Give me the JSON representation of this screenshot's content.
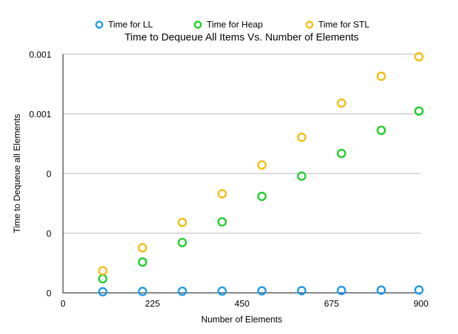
{
  "chart_data": {
    "type": "scatter",
    "title": "Time to Dequeue All Items Vs. Number of Elements",
    "xlabel": "Number of Elements",
    "ylabel": "Time to Dequeue all Elements",
    "xlim": [
      0,
      900
    ],
    "ylim": [
      0,
      0.0012
    ],
    "x_ticks": [
      "0",
      "225",
      "450",
      "675",
      "900"
    ],
    "y_ticks": [
      "0",
      "0",
      "0",
      "0.001",
      "0.001"
    ],
    "grid": "horizontal",
    "legend_position": "top",
    "series": [
      {
        "name": "Time for LL",
        "color": "#1E9BEA",
        "x": [
          100,
          200,
          300,
          400,
          500,
          600,
          700,
          800,
          900
        ],
        "y": [
          5.5e-06,
          7e-06,
          8e-06,
          9e-06,
          1e-05,
          1.1e-05,
          1.2e-05,
          1.35e-05,
          1.45e-05
        ]
      },
      {
        "name": "Time for Heap",
        "color": "#22D02C",
        "x": [
          100,
          200,
          300,
          400,
          500,
          600,
          700,
          800,
          900
        ],
        "y": [
          7.1e-05,
          0.000155,
          0.000253,
          0.000357,
          0.000485,
          0.000587,
          0.000701,
          0.000817,
          0.000914
        ]
      },
      {
        "name": "Time for STL",
        "color": "#F5BE19",
        "x": [
          100,
          200,
          300,
          400,
          500,
          600,
          700,
          800,
          900
        ],
        "y": [
          0.000111,
          0.000226,
          0.000354,
          0.000498,
          0.000643,
          0.000782,
          0.000954,
          0.001089,
          0.001187
        ]
      }
    ]
  }
}
